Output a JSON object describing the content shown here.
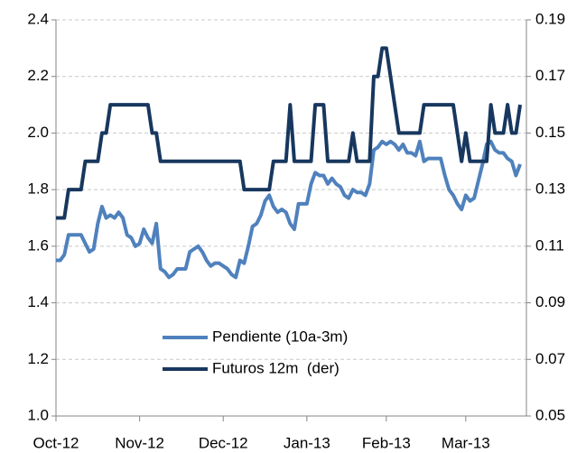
{
  "chart_data": {
    "type": "line",
    "categories": [
      "Oct-12",
      null,
      null,
      null,
      null,
      null,
      null,
      null,
      null,
      null,
      null,
      null,
      null,
      null,
      null,
      null,
      null,
      null,
      null,
      null,
      "Nov-12",
      null,
      null,
      null,
      null,
      null,
      null,
      null,
      null,
      null,
      null,
      null,
      null,
      null,
      null,
      null,
      null,
      null,
      null,
      null,
      "Dec-12",
      null,
      null,
      null,
      null,
      null,
      null,
      null,
      null,
      null,
      null,
      null,
      null,
      null,
      null,
      null,
      null,
      null,
      null,
      null,
      "Jan-13",
      null,
      null,
      null,
      null,
      null,
      null,
      null,
      null,
      null,
      null,
      null,
      null,
      null,
      null,
      null,
      null,
      null,
      null,
      "Feb-13",
      null,
      null,
      null,
      null,
      null,
      null,
      null,
      null,
      null,
      null,
      null,
      null,
      null,
      null,
      null,
      null,
      null,
      null,
      "Mar-13",
      null,
      null,
      null,
      null,
      null,
      null,
      null,
      null,
      null,
      null,
      null,
      null,
      null
    ],
    "series": [
      {
        "name": "Pendiente (10a-3m)",
        "color": "#4f81bd",
        "values": [
          1.55,
          1.55,
          1.57,
          1.64,
          1.64,
          1.64,
          1.64,
          1.61,
          1.58,
          1.59,
          1.68,
          1.74,
          1.7,
          1.71,
          1.7,
          1.72,
          1.7,
          1.64,
          1.63,
          1.6,
          1.61,
          1.66,
          1.63,
          1.61,
          1.68,
          1.52,
          1.51,
          1.49,
          1.5,
          1.52,
          1.52,
          1.52,
          1.58,
          1.59,
          1.6,
          1.58,
          1.55,
          1.53,
          1.54,
          1.54,
          1.53,
          1.52,
          1.5,
          1.49,
          1.55,
          1.54,
          1.6,
          1.67,
          1.68,
          1.71,
          1.76,
          1.78,
          1.74,
          1.72,
          1.73,
          1.72,
          1.68,
          1.66,
          1.75,
          1.75,
          1.75,
          1.82,
          1.86,
          1.85,
          1.85,
          1.82,
          1.84,
          1.82,
          1.81,
          1.78,
          1.77,
          1.8,
          1.79,
          1.79,
          1.78,
          1.82,
          1.94,
          1.95,
          1.97,
          1.96,
          1.97,
          1.96,
          1.94,
          1.96,
          1.93,
          1.93,
          1.92,
          1.97,
          1.9,
          1.91,
          1.91,
          1.91,
          1.91,
          1.85,
          1.8,
          1.78,
          1.75,
          1.73,
          1.78,
          1.76,
          1.77,
          1.83,
          1.89,
          1.96,
          1.97,
          1.94,
          1.93,
          1.93,
          1.91,
          1.9,
          1.85,
          1.89
        ]
      },
      {
        "name": "Futuros 12m  (der)",
        "color": "#17375e",
        "axis": "y2",
        "values": [
          0.12,
          0.12,
          0.12,
          0.13,
          0.13,
          0.13,
          0.13,
          0.14,
          0.14,
          0.14,
          0.14,
          0.15,
          0.15,
          0.16,
          0.16,
          0.16,
          0.16,
          0.16,
          0.16,
          0.16,
          0.16,
          0.16,
          0.16,
          0.15,
          0.15,
          0.14,
          0.14,
          0.14,
          0.14,
          0.14,
          0.14,
          0.14,
          0.14,
          0.14,
          0.14,
          0.14,
          0.14,
          0.14,
          0.14,
          0.14,
          0.14,
          0.14,
          0.14,
          0.14,
          0.14,
          0.13,
          0.13,
          0.13,
          0.13,
          0.13,
          0.13,
          0.13,
          0.14,
          0.14,
          0.14,
          0.14,
          0.16,
          0.14,
          0.14,
          0.14,
          0.14,
          0.14,
          0.16,
          0.16,
          0.16,
          0.14,
          0.14,
          0.14,
          0.14,
          0.14,
          0.14,
          0.15,
          0.14,
          0.14,
          0.14,
          0.14,
          0.17,
          0.17,
          0.18,
          0.18,
          0.17,
          0.16,
          0.15,
          0.15,
          0.15,
          0.15,
          0.15,
          0.15,
          0.16,
          0.16,
          0.16,
          0.16,
          0.16,
          0.16,
          0.16,
          0.16,
          0.15,
          0.14,
          0.15,
          0.14,
          0.14,
          0.14,
          0.14,
          0.14,
          0.16,
          0.15,
          0.15,
          0.15,
          0.16,
          0.15,
          0.15,
          0.16
        ]
      }
    ],
    "ylim": [
      1.0,
      2.4
    ],
    "yticks": [
      {
        "value": 1.0,
        "label": "1.0"
      },
      1.2,
      1.4,
      1.6,
      1.8,
      {
        "value": 2.0,
        "label": "2.0"
      },
      2.2,
      2.4
    ],
    "y2lim": [
      0.05,
      0.19
    ],
    "y2ticks": [
      0.05,
      0.07,
      0.09,
      0.11,
      0.13,
      0.15,
      0.17,
      0.19
    ],
    "grid": true
  }
}
